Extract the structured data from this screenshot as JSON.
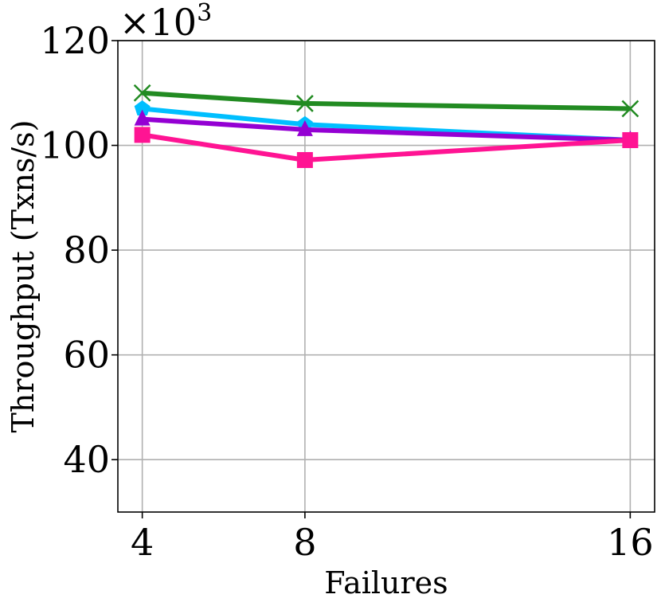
{
  "chart_data": {
    "type": "line",
    "x": [
      4,
      8,
      16
    ],
    "x_tick_labels": [
      "4",
      "8",
      "16"
    ],
    "xlim": [
      3.4,
      16.6
    ],
    "ylim": [
      30,
      120
    ],
    "y_ticks": [
      40,
      60,
      80,
      100,
      120
    ],
    "y_tick_labels": [
      "40",
      "60",
      "80",
      "100",
      "120"
    ],
    "y_scale_label": "×10",
    "y_scale_exponent": "3",
    "xlabel": "Failures",
    "ylabel": "Throughput (Txns/s)",
    "grid": true,
    "legend": "none",
    "series": [
      {
        "color": "#228B22",
        "marker": "x",
        "values": [
          110,
          108,
          107
        ]
      },
      {
        "color": "#00BFFF",
        "marker": "pentagon",
        "values": [
          107,
          104,
          101
        ]
      },
      {
        "color": "#9400D3",
        "marker": "triangle",
        "values": [
          105,
          103,
          101
        ]
      },
      {
        "color": "#FF1493",
        "marker": "square",
        "values": [
          102,
          97.2,
          101
        ]
      }
    ]
  }
}
